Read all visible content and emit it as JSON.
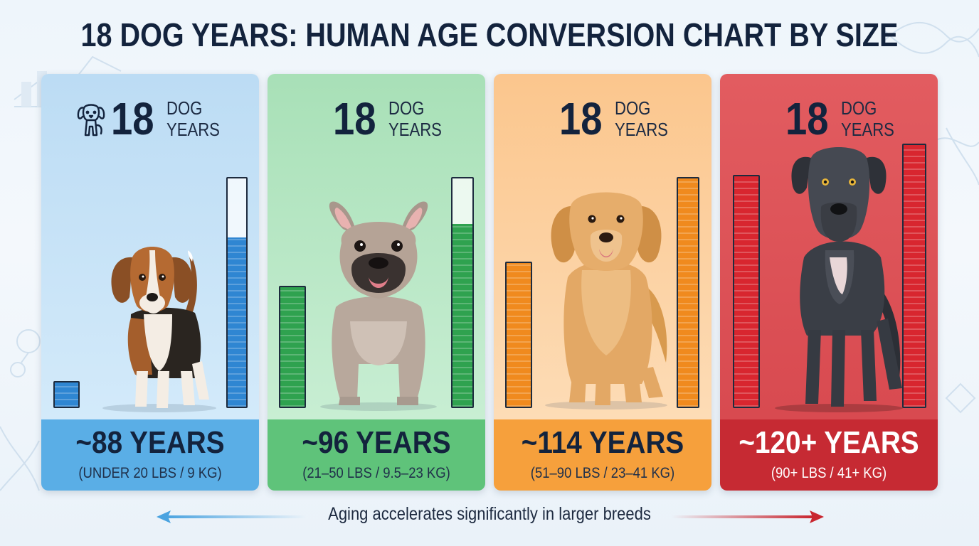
{
  "title": "18 DOG YEARS: HUMAN AGE CONVERSION CHART BY SIZE",
  "cards": [
    {
      "number": "18",
      "dog_label_line1": "DOG",
      "dog_label_line2": "YEARS",
      "human_years": "~88 YEARS",
      "weight_range": "(UNDER 20 LBS / 9 KG)",
      "breed_icon": "beagle-illustration",
      "header_icon": "dog-outline-icon",
      "top_color": "#c2e1f6",
      "bottom_color": "#5aaee6",
      "bar_color": "#2f86d2",
      "small_bar_level": 0.1,
      "tall_bar_level": 0.74
    },
    {
      "number": "18",
      "dog_label_line1": "DOG",
      "dog_label_line2": "YEARS",
      "human_years": "~96 YEARS",
      "weight_range": "(21–50 LBS / 9.5–23 KG)",
      "breed_icon": "french-bulldog-illustration",
      "top_color": "#bde8c8",
      "bottom_color": "#5fc37a",
      "bar_color": "#2fa24f",
      "small_bar_level": 0.52,
      "tall_bar_level": 0.8
    },
    {
      "number": "18",
      "dog_label_line1": "DOG",
      "dog_label_line2": "YEARS",
      "human_years": "~114 YEARS",
      "weight_range": "(51–90 LBS / 23–41 KG)",
      "breed_icon": "golden-retriever-illustration",
      "top_color": "#fbd3a6",
      "bottom_color": "#f6a03c",
      "bar_color": "#f08a1e",
      "small_bar_level": 0.62,
      "tall_bar_level": 1.0
    },
    {
      "number": "18",
      "dog_label_line1": "DOG",
      "dog_label_line2": "YEARS",
      "human_years": "~120+ YEARS",
      "weight_range": "(90+ LBS / 41+ KG)",
      "breed_icon": "great-dane-illustration",
      "top_color": "#dc555a",
      "bottom_color": "#c62a33",
      "bar_color": "#d8262f",
      "small_bar_level": 1.0,
      "tall_bar_level": 1.0
    }
  ],
  "footer": {
    "text": "Aging accelerates significantly in larger breeds",
    "left_arrow_color": "#4aa3e0",
    "right_arrow_color": "#c9262f"
  }
}
